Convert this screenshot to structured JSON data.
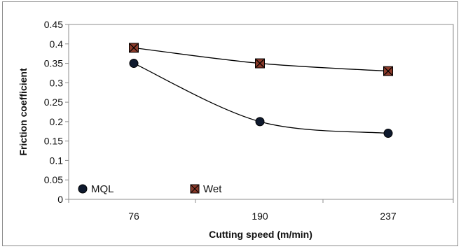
{
  "chart_data": {
    "type": "line",
    "categories": [
      "76",
      "190",
      "237"
    ],
    "xlabel": "Cutting speed (m/min)",
    "ylabel": "Friction coefficient",
    "ylim": [
      0,
      0.45
    ],
    "yticks": [
      "0",
      "0.05",
      "0.1",
      "0.15",
      "0.2",
      "0.25",
      "0.3",
      "0.35",
      "0.4",
      "0.45"
    ],
    "grid": false,
    "legend_position": "bottom-left",
    "series": [
      {
        "name": "MQL",
        "values": [
          0.35,
          0.2,
          0.17
        ],
        "marker": "circle",
        "color": "#000000",
        "marker_color": "#0f1a2e"
      },
      {
        "name": "Wet",
        "values": [
          0.39,
          0.35,
          0.33
        ],
        "marker": "square-x",
        "color": "#000000",
        "marker_color": "#8b3a2a"
      }
    ]
  }
}
